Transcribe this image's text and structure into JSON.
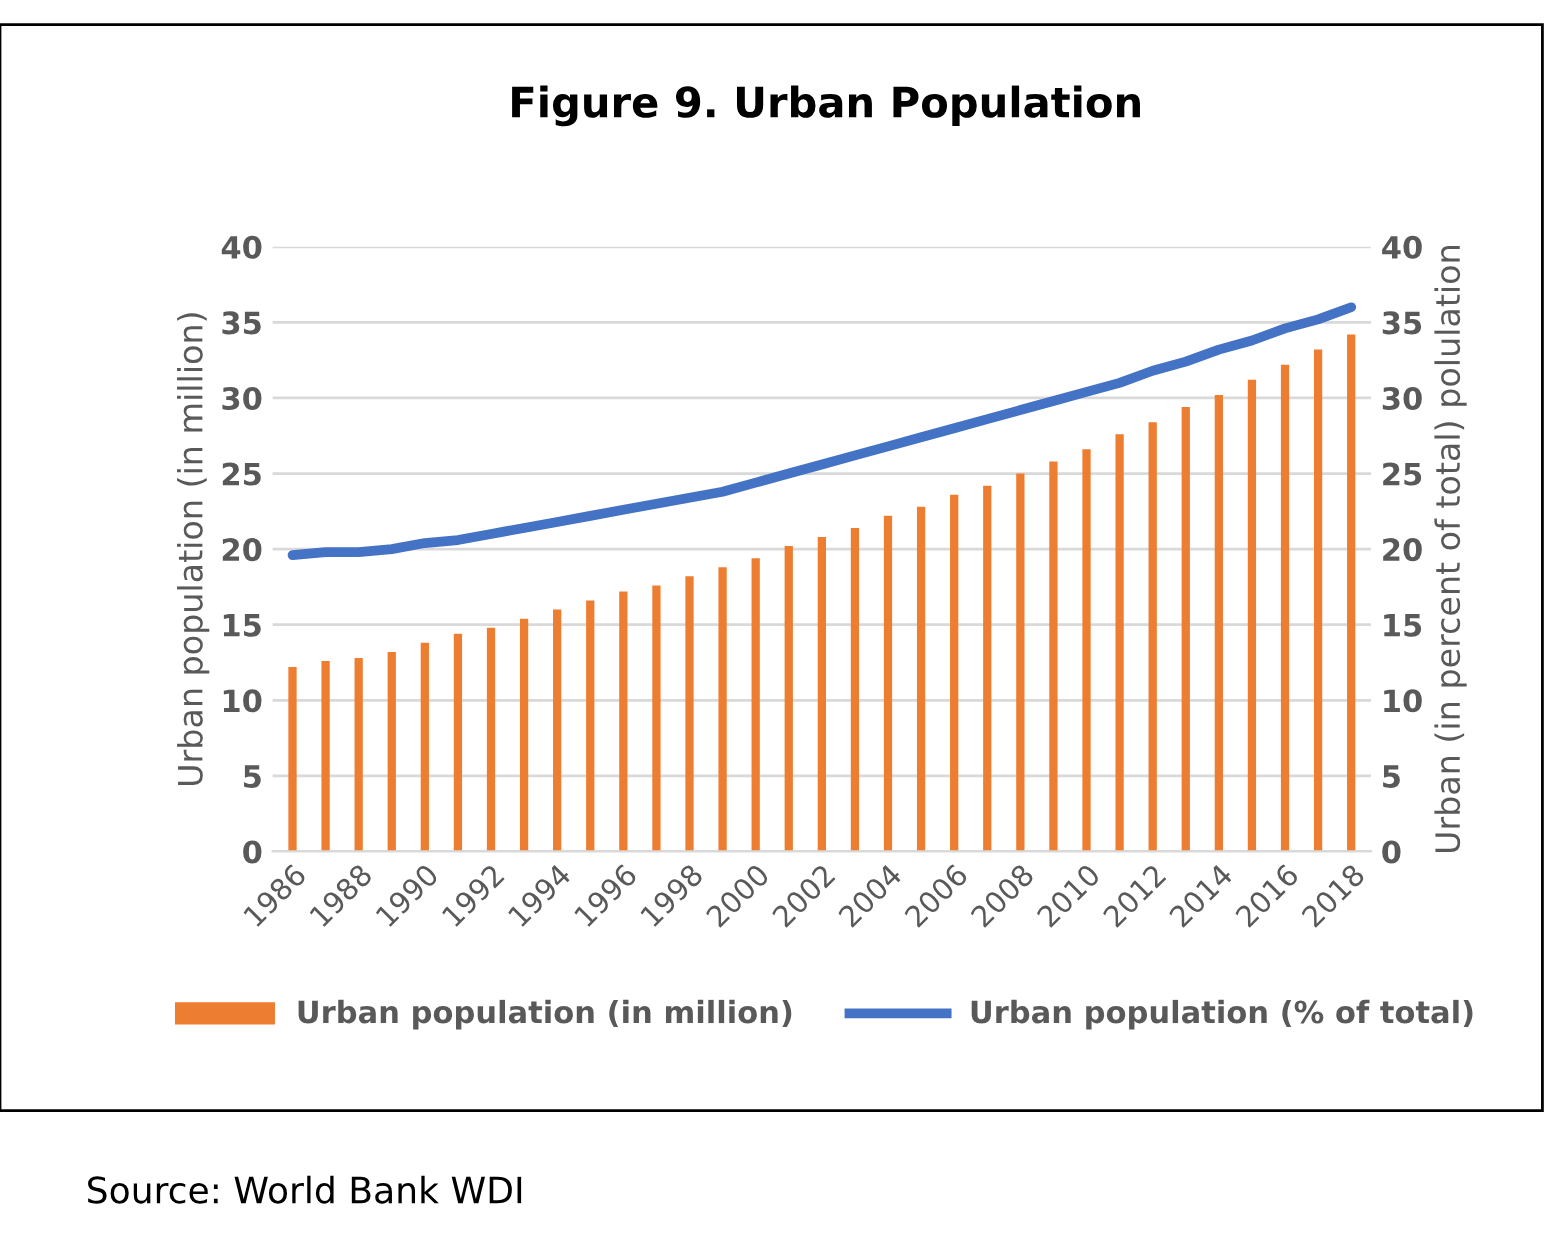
{
  "chart_data": {
    "type": "bar",
    "title": "Figure 9. Urban Population",
    "ylabel": "Urban population (in million)",
    "y2label": "Urban (in percent of total) polulation",
    "categories": [
      "1986",
      null,
      "1988",
      null,
      "1990",
      null,
      "1992",
      null,
      "1994",
      null,
      "1996",
      null,
      "1998",
      null,
      "2000",
      null,
      "2002",
      null,
      "2004",
      null,
      "2006",
      null,
      "2008",
      null,
      "2010",
      null,
      "2012",
      null,
      "2014",
      null,
      "2016",
      null,
      "2018"
    ],
    "series": [
      {
        "name": "Urban population (in million)",
        "color": "#ed7d31",
        "values": [
          12.2,
          12.6,
          12.8,
          13.2,
          13.8,
          14.4,
          14.8,
          15.4,
          16.0,
          16.6,
          17.2,
          17.6,
          18.2,
          18.8,
          19.4,
          20.2,
          20.8,
          21.4,
          22.2,
          22.8,
          23.6,
          24.2,
          25.0,
          25.8,
          26.6,
          27.6,
          28.4,
          29.4,
          30.2,
          31.2,
          32.2,
          33.2,
          34.2
        ]
      },
      {
        "name": "Urban population (% of total)",
        "type": "line",
        "axis": "y2",
        "color": "#4472c4",
        "values": [
          19.6,
          19.8,
          19.8,
          20.0,
          20.4,
          20.6,
          21.0,
          21.4,
          21.8,
          22.2,
          22.6,
          23.0,
          23.4,
          23.8,
          24.4,
          25.0,
          25.6,
          26.2,
          26.8,
          27.4,
          28.0,
          28.6,
          29.2,
          29.8,
          30.4,
          31.0,
          31.8,
          32.4,
          33.2,
          33.8,
          34.6,
          35.2,
          36.0
        ]
      }
    ],
    "ylim": [
      0,
      40
    ],
    "yticks": [
      0,
      5,
      10,
      15,
      20,
      25,
      30,
      35,
      40
    ],
    "y2lim": [
      0,
      40
    ],
    "y2ticks": [
      0,
      5,
      10,
      15,
      20,
      25,
      30,
      35,
      40
    ],
    "grid": "y",
    "legend": "bottom",
    "annotations": [
      "Source: World Bank WDI"
    ]
  }
}
